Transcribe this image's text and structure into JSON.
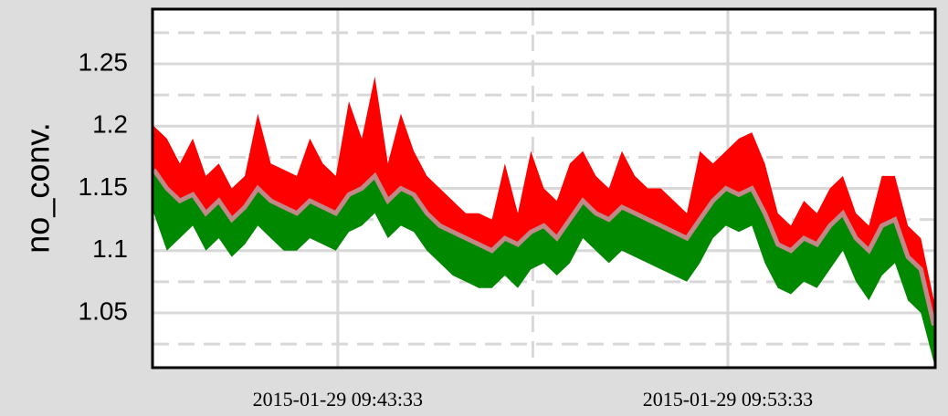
{
  "chart_data": {
    "type": "band",
    "y_label": "no_conv.",
    "x": [
      "2015-01-29 09:38:50",
      "2015-01-29 09:39:10",
      "2015-01-29 09:39:30",
      "2015-01-29 09:39:50",
      "2015-01-29 09:40:10",
      "2015-01-29 09:40:30",
      "2015-01-29 09:40:50",
      "2015-01-29 09:41:10",
      "2015-01-29 09:41:30",
      "2015-01-29 09:41:50",
      "2015-01-29 09:42:10",
      "2015-01-29 09:42:30",
      "2015-01-29 09:42:50",
      "2015-01-29 09:43:10",
      "2015-01-29 09:43:30",
      "2015-01-29 09:43:50",
      "2015-01-29 09:44:10",
      "2015-01-29 09:44:30",
      "2015-01-29 09:44:50",
      "2015-01-29 09:45:10",
      "2015-01-29 09:45:30",
      "2015-01-29 09:45:50",
      "2015-01-29 09:46:10",
      "2015-01-29 09:46:30",
      "2015-01-29 09:46:50",
      "2015-01-29 09:47:10",
      "2015-01-29 09:47:30",
      "2015-01-29 09:47:50",
      "2015-01-29 09:48:10",
      "2015-01-29 09:48:30",
      "2015-01-29 09:48:50",
      "2015-01-29 09:49:10",
      "2015-01-29 09:49:30",
      "2015-01-29 09:49:50",
      "2015-01-29 09:50:10",
      "2015-01-29 09:50:30",
      "2015-01-29 09:50:50",
      "2015-01-29 09:51:10",
      "2015-01-29 09:51:30",
      "2015-01-29 09:51:50",
      "2015-01-29 09:52:10",
      "2015-01-29 09:52:30",
      "2015-01-29 09:52:50",
      "2015-01-29 09:53:10",
      "2015-01-29 09:53:30",
      "2015-01-29 09:53:50",
      "2015-01-29 09:54:10",
      "2015-01-29 09:54:30",
      "2015-01-29 09:54:50",
      "2015-01-29 09:55:10",
      "2015-01-29 09:55:30",
      "2015-01-29 09:55:50",
      "2015-01-29 09:56:10",
      "2015-01-29 09:56:30",
      "2015-01-29 09:56:50",
      "2015-01-29 09:57:10",
      "2015-01-29 09:57:30",
      "2015-01-29 09:57:50",
      "2015-01-29 09:58:10",
      "2015-01-29 09:58:30",
      "2015-01-29 09:58:50"
    ],
    "series": [
      {
        "color": "#ff0000",
        "values": [
          1.2,
          1.19,
          1.17,
          1.19,
          1.16,
          1.17,
          1.15,
          1.16,
          1.21,
          1.17,
          1.165,
          1.16,
          1.19,
          1.17,
          1.16,
          1.22,
          1.19,
          1.24,
          1.17,
          1.21,
          1.18,
          1.16,
          1.15,
          1.14,
          1.13,
          1.13,
          1.125,
          1.17,
          1.13,
          1.18,
          1.15,
          1.14,
          1.17,
          1.18,
          1.16,
          1.15,
          1.18,
          1.16,
          1.15,
          1.15,
          1.14,
          1.13,
          1.18,
          1.17,
          1.18,
          1.19,
          1.195,
          1.17,
          1.13,
          1.12,
          1.14,
          1.13,
          1.15,
          1.16,
          1.13,
          1.12,
          1.16,
          1.16,
          1.12,
          1.11,
          1.06
        ]
      },
      {
        "color": "#c08888",
        "values": [
          1.165,
          1.15,
          1.14,
          1.145,
          1.13,
          1.14,
          1.125,
          1.135,
          1.15,
          1.14,
          1.135,
          1.13,
          1.14,
          1.135,
          1.13,
          1.145,
          1.15,
          1.16,
          1.14,
          1.15,
          1.145,
          1.13,
          1.12,
          1.115,
          1.11,
          1.105,
          1.1,
          1.11,
          1.105,
          1.115,
          1.12,
          1.11,
          1.125,
          1.14,
          1.13,
          1.125,
          1.135,
          1.13,
          1.125,
          1.12,
          1.115,
          1.11,
          1.125,
          1.14,
          1.15,
          1.145,
          1.15,
          1.13,
          1.105,
          1.1,
          1.11,
          1.105,
          1.12,
          1.13,
          1.11,
          1.1,
          1.12,
          1.125,
          1.095,
          1.085,
          1.04
        ]
      },
      {
        "color": "#008800",
        "values": [
          1.13,
          1.1,
          1.11,
          1.12,
          1.1,
          1.11,
          1.095,
          1.105,
          1.12,
          1.11,
          1.1,
          1.1,
          1.11,
          1.105,
          1.1,
          1.115,
          1.12,
          1.13,
          1.11,
          1.12,
          1.115,
          1.1,
          1.09,
          1.08,
          1.075,
          1.07,
          1.07,
          1.08,
          1.07,
          1.085,
          1.09,
          1.08,
          1.09,
          1.11,
          1.1,
          1.09,
          1.1,
          1.095,
          1.09,
          1.085,
          1.08,
          1.075,
          1.09,
          1.11,
          1.12,
          1.115,
          1.12,
          1.09,
          1.07,
          1.065,
          1.075,
          1.07,
          1.085,
          1.1,
          1.075,
          1.06,
          1.08,
          1.09,
          1.06,
          1.05,
          1.01
        ]
      }
    ],
    "xlim": [
      "2015-01-29 09:38:48",
      "2015-01-29 09:58:52"
    ],
    "xticks": [
      "2015-01-29 09:43:33",
      "2015-01-29 09:53:33"
    ],
    "xticks_minor": [
      "2015-01-29 09:48:33"
    ],
    "ylim": [
      1.006,
      1.294
    ],
    "yticks": [
      1.05,
      1.1,
      1.15,
      1.2,
      1.25
    ],
    "yticks_minor": [
      1.025,
      1.075,
      1.125,
      1.175,
      1.225,
      1.275
    ],
    "grid": true
  }
}
